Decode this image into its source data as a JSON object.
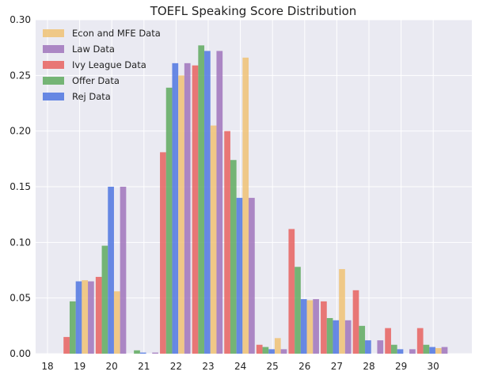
{
  "chart_data": {
    "type": "bar",
    "title": "TOEFL Speaking Score Distribution",
    "xlabel": "",
    "ylabel": "",
    "ylim": [
      0,
      0.3
    ],
    "yticks": [
      "0.00",
      "0.05",
      "0.10",
      "0.15",
      "0.20",
      "0.25",
      "0.30"
    ],
    "categories": [
      "18",
      "19",
      "20",
      "21",
      "22",
      "23",
      "24",
      "25",
      "26",
      "27",
      "28",
      "29",
      "30"
    ],
    "grid": true,
    "legend_position": "top-left",
    "series": [
      {
        "name": "Ivy League Data",
        "color": "#e8625f",
        "values": [
          0.0,
          0.015,
          0.069,
          0.0,
          0.181,
          0.259,
          0.2,
          0.008,
          0.112,
          0.047,
          0.057,
          0.023,
          0.023
        ]
      },
      {
        "name": "Offer Data",
        "color": "#5faa5f",
        "values": [
          0.0,
          0.047,
          0.097,
          0.003,
          0.239,
          0.277,
          0.174,
          0.006,
          0.078,
          0.032,
          0.025,
          0.008,
          0.008
        ]
      },
      {
        "name": "Rej Data",
        "color": "#4f76e0",
        "values": [
          0.0,
          0.065,
          0.15,
          0.001,
          0.261,
          0.272,
          0.14,
          0.004,
          0.049,
          0.03,
          0.012,
          0.004,
          0.006
        ]
      },
      {
        "name": "Econ and MFE Data",
        "color": "#f0c274",
        "values": [
          0.0,
          0.066,
          0.056,
          0.0,
          0.25,
          0.205,
          0.266,
          0.014,
          0.048,
          0.076,
          0.0,
          0.0,
          0.005
        ]
      },
      {
        "name": "Law Data",
        "color": "#a074bc",
        "values": [
          0.0,
          0.065,
          0.15,
          0.001,
          0.261,
          0.272,
          0.14,
          0.004,
          0.049,
          0.03,
          0.012,
          0.004,
          0.006
        ]
      }
    ],
    "legend_order": [
      "Econ and MFE Data",
      "Law Data",
      "Ivy League Data",
      "Offer Data",
      "Rej Data"
    ]
  }
}
